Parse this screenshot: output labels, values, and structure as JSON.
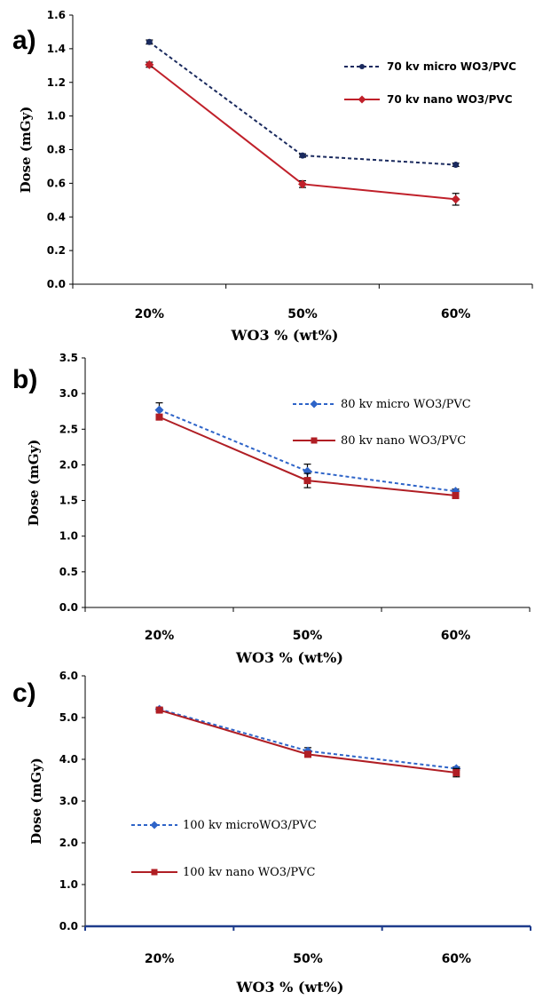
{
  "chart_data": [
    {
      "panel_label": "a)",
      "type": "line",
      "categories": [
        "20%",
        "50%",
        "60%"
      ],
      "xlabel": "WO3 % (wt%)",
      "ylabel": "Dose (mGy)",
      "ylim": [
        0,
        1.6
      ],
      "yticks": [
        "0.0",
        "0.2",
        "0.4",
        "0.6",
        "0.8",
        "1.0",
        "1.2",
        "1.4",
        "1.6"
      ],
      "legend_position": "top-right",
      "series": [
        {
          "name": "70 kv micro WO3/PVC",
          "values": [
            1.44,
            0.765,
            0.71
          ],
          "errors": [
            0.012,
            0.01,
            0.01
          ],
          "color": "#1a2a5e",
          "dash": "dashed",
          "marker": "circle"
        },
        {
          "name": "70 kv nano WO3/PVC",
          "values": [
            1.305,
            0.595,
            0.505
          ],
          "errors": [
            0.015,
            0.02,
            0.035
          ],
          "color": "#c0202a",
          "dash": "solid",
          "marker": "diamond"
        }
      ]
    },
    {
      "panel_label": "b)",
      "type": "line",
      "categories": [
        "20%",
        "50%",
        "60%"
      ],
      "xlabel": "WO3 % (wt%)",
      "ylabel": "Dose (mGy)",
      "ylim": [
        0,
        3.5
      ],
      "yticks": [
        "0.0",
        "0.5",
        "1.0",
        "1.5",
        "2.0",
        "2.5",
        "3.0",
        "3.5"
      ],
      "legend_position": "top-right",
      "series": [
        {
          "name": "80 kv micro WO3/PVC",
          "values": [
            2.77,
            1.91,
            1.63
          ],
          "errors": [
            0.1,
            0.1,
            0.03
          ],
          "color": "#2e64c8",
          "dash": "dashed",
          "marker": "diamond"
        },
        {
          "name": "80 kv nano WO3/PVC",
          "values": [
            2.67,
            1.78,
            1.57
          ],
          "errors": [
            0.03,
            0.1,
            0.04
          ],
          "color": "#b01e24",
          "dash": "solid",
          "marker": "square"
        }
      ]
    },
    {
      "panel_label": "c)",
      "type": "line",
      "categories": [
        "20%",
        "50%",
        "60%"
      ],
      "xlabel": "WO3 % (wt%)",
      "ylabel": "Dose (mGy)",
      "ylim": [
        0,
        6
      ],
      "yticks": [
        "0.0",
        "1.0",
        "2.0",
        "3.0",
        "4.0",
        "5.0",
        "6.0"
      ],
      "legend_position": "bottom-left",
      "series": [
        {
          "name": "100 kv microWO3/PVC",
          "values": [
            5.2,
            4.2,
            3.78
          ],
          "errors": [
            0.04,
            0.08,
            0.04
          ],
          "color": "#2e64c8",
          "dash": "dashed",
          "marker": "diamond"
        },
        {
          "name": "100 kv nano WO3/PVC",
          "values": [
            5.18,
            4.12,
            3.68
          ],
          "errors": [
            0.04,
            0.06,
            0.1
          ],
          "color": "#b01e24",
          "dash": "solid",
          "marker": "square"
        }
      ]
    }
  ]
}
